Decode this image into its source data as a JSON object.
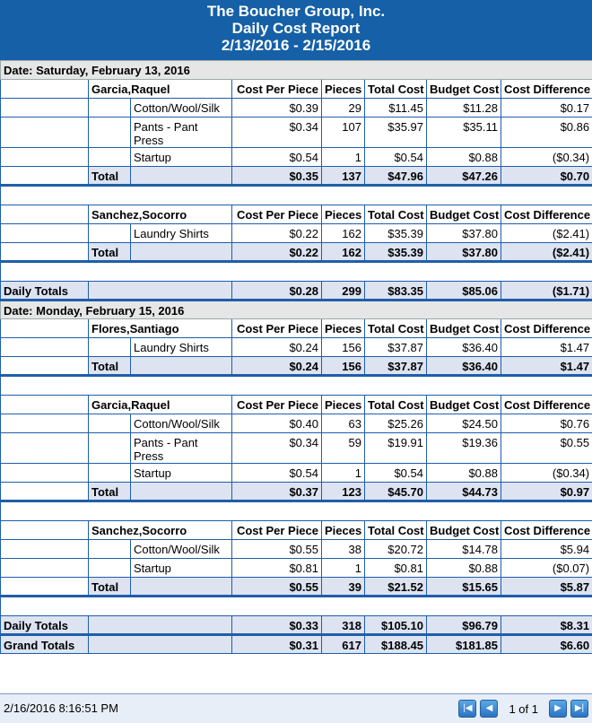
{
  "report": {
    "company": "The Boucher Group, Inc.",
    "title": "Daily Cost Report",
    "range": "2/13/2016 - 2/15/2016"
  },
  "columns": {
    "cpp": "Cost Per Piece",
    "pieces": "Pieces",
    "total_cost": "Total Cost",
    "budget_cost": "Budget Cost",
    "cost_diff": "Cost Difference"
  },
  "labels": {
    "total": "Total",
    "daily_totals": "Daily Totals",
    "grand_totals": "Grand Totals"
  },
  "days": [
    {
      "date": "Date: Saturday, February 13, 2016",
      "groups": [
        {
          "employee": "Garcia,Raquel",
          "rows": [
            {
              "op": "Cotton/Wool/Silk",
              "cpp": "$0.39",
              "pieces": "29",
              "total": "$11.45",
              "budget": "$11.28",
              "diff": "$0.17"
            },
            {
              "op": "Pants - Pant Press",
              "cpp": "$0.34",
              "pieces": "107",
              "total": "$35.97",
              "budget": "$35.11",
              "diff": "$0.86"
            },
            {
              "op": "Startup",
              "cpp": "$0.54",
              "pieces": "1",
              "total": "$0.54",
              "budget": "$0.88",
              "diff": "($0.34)"
            }
          ],
          "total": {
            "cpp": "$0.35",
            "pieces": "137",
            "total": "$47.96",
            "budget": "$47.26",
            "diff": "$0.70"
          }
        },
        {
          "employee": "Sanchez,Socorro",
          "rows": [
            {
              "op": "Laundry Shirts",
              "cpp": "$0.22",
              "pieces": "162",
              "total": "$35.39",
              "budget": "$37.80",
              "diff": "($2.41)"
            }
          ],
          "total": {
            "cpp": "$0.22",
            "pieces": "162",
            "total": "$35.39",
            "budget": "$37.80",
            "diff": "($2.41)"
          }
        }
      ],
      "daily": {
        "cpp": "$0.28",
        "pieces": "299",
        "total": "$83.35",
        "budget": "$85.06",
        "diff": "($1.71)"
      }
    },
    {
      "date": "Date: Monday, February 15, 2016",
      "groups": [
        {
          "employee": "Flores,Santiago",
          "rows": [
            {
              "op": "Laundry Shirts",
              "cpp": "$0.24",
              "pieces": "156",
              "total": "$37.87",
              "budget": "$36.40",
              "diff": "$1.47"
            }
          ],
          "total": {
            "cpp": "$0.24",
            "pieces": "156",
            "total": "$37.87",
            "budget": "$36.40",
            "diff": "$1.47"
          }
        },
        {
          "employee": "Garcia,Raquel",
          "rows": [
            {
              "op": "Cotton/Wool/Silk",
              "cpp": "$0.40",
              "pieces": "63",
              "total": "$25.26",
              "budget": "$24.50",
              "diff": "$0.76"
            },
            {
              "op": "Pants - Pant Press",
              "cpp": "$0.34",
              "pieces": "59",
              "total": "$19.91",
              "budget": "$19.36",
              "diff": "$0.55"
            },
            {
              "op": "Startup",
              "cpp": "$0.54",
              "pieces": "1",
              "total": "$0.54",
              "budget": "$0.88",
              "diff": "($0.34)"
            }
          ],
          "total": {
            "cpp": "$0.37",
            "pieces": "123",
            "total": "$45.70",
            "budget": "$44.73",
            "diff": "$0.97"
          }
        },
        {
          "employee": "Sanchez,Socorro",
          "rows": [
            {
              "op": "Cotton/Wool/Silk",
              "cpp": "$0.55",
              "pieces": "38",
              "total": "$20.72",
              "budget": "$14.78",
              "diff": "$5.94"
            },
            {
              "op": "Startup",
              "cpp": "$0.81",
              "pieces": "1",
              "total": "$0.81",
              "budget": "$0.88",
              "diff": "($0.07)"
            }
          ],
          "total": {
            "cpp": "$0.55",
            "pieces": "39",
            "total": "$21.52",
            "budget": "$15.65",
            "diff": "$5.87"
          }
        }
      ],
      "daily": {
        "cpp": "$0.33",
        "pieces": "318",
        "total": "$105.10",
        "budget": "$96.79",
        "diff": "$8.31"
      }
    }
  ],
  "grand": {
    "cpp": "$0.31",
    "pieces": "617",
    "total": "$188.45",
    "budget": "$181.85",
    "diff": "$6.60"
  },
  "footer": {
    "timestamp": "2/16/2016 8:16:51 PM",
    "page_info": "1 of 1",
    "first_icon": "first-page-icon",
    "prev_icon": "previous-page-icon",
    "next_icon": "next-page-icon",
    "last_icon": "last-page-icon"
  }
}
